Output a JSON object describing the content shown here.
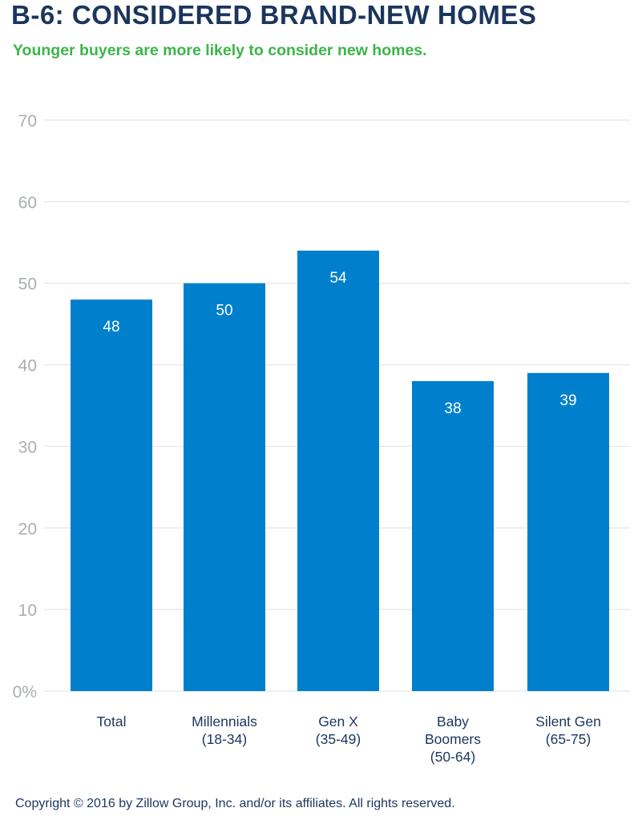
{
  "title": "B-6: CONSIDERED BRAND-NEW HOMES",
  "subtitle": "Younger buyers are more likely to consider new homes.",
  "footer": "Copyright © 2016 by Zillow Group, Inc. and/or its affiliates. All rights reserved.",
  "colors": {
    "bar": "#0080cc",
    "title": "#1b365d",
    "subtitle": "#3cb54a",
    "tick": "#a9aeb3",
    "grid": "#e3e5e7",
    "bar_label": "#ffffff"
  },
  "chart_data": {
    "type": "bar",
    "title": "B-6: CONSIDERED BRAND-NEW HOMES",
    "subtitle": "Younger buyers are more likely to consider new homes.",
    "categories": [
      [
        "Total"
      ],
      [
        "Millennials",
        "(18-34)"
      ],
      [
        "Gen X",
        "(35-49)"
      ],
      [
        "Baby",
        "Boomers",
        "(50-64)"
      ],
      [
        "Silent Gen",
        "(65-75)"
      ]
    ],
    "values": [
      48,
      50,
      54,
      38,
      39
    ],
    "data_labels": [
      "48",
      "50",
      "54",
      "38",
      "39"
    ],
    "ylim": [
      0,
      70
    ],
    "yticks": [
      0,
      10,
      20,
      30,
      40,
      50,
      60,
      70
    ],
    "ytick_labels": [
      "0%",
      "10",
      "20",
      "30",
      "40",
      "50",
      "60",
      "70"
    ],
    "grid": true,
    "legend": false
  }
}
